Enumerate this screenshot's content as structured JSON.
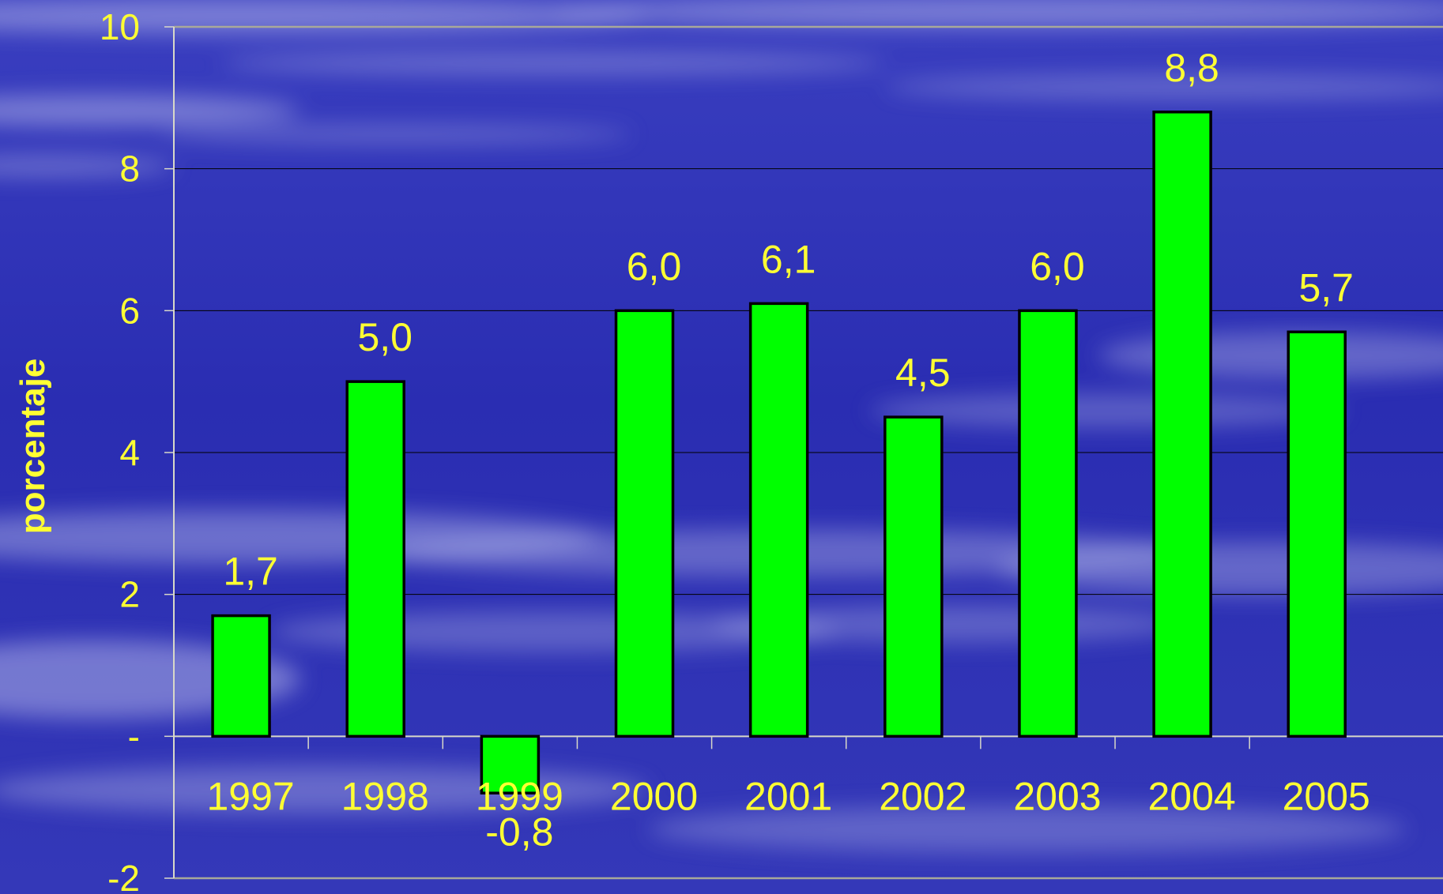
{
  "chart_data": {
    "type": "bar",
    "title": "",
    "xlabel": "",
    "ylabel": "porcentaje",
    "ylim": [
      -2,
      10
    ],
    "yticks": [
      {
        "value": 10,
        "label": "10"
      },
      {
        "value": 8,
        "label": "8"
      },
      {
        "value": 6,
        "label": "6"
      },
      {
        "value": 4,
        "label": "4"
      },
      {
        "value": 2,
        "label": "2"
      },
      {
        "value": 0,
        "label": "-"
      },
      {
        "value": -2,
        "label": "-2"
      }
    ],
    "grid": true,
    "legend": "none",
    "categories": [
      "1997",
      "1998",
      "1999",
      "2000",
      "2001",
      "2002",
      "2003",
      "2004",
      "2005"
    ],
    "values": [
      1.7,
      5.0,
      -0.8,
      6.0,
      6.1,
      4.5,
      6.0,
      8.8,
      5.7
    ],
    "value_labels": [
      "1,7",
      "5,0",
      "-0,8",
      "6,0",
      "6,1",
      "4,5",
      "6,0",
      "8,8",
      "5,7"
    ]
  },
  "colors": {
    "bar_fill": "#00ff00",
    "bar_stroke": "#000000",
    "text": "#ffff33",
    "axis": "#d8d8c8",
    "grid": "#000000",
    "background": "#2c2fb4"
  }
}
